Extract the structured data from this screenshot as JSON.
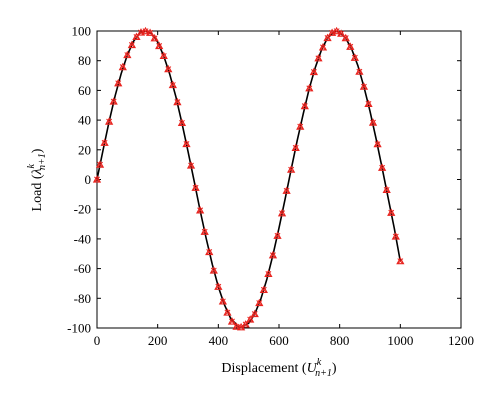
{
  "chart_data": {
    "type": "line",
    "title": "",
    "xlabel": {
      "base": "Displacement (",
      "var": "U",
      "sup": "k",
      "sub": "n+1",
      "tail": ")"
    },
    "ylabel": {
      "base": "Load (",
      "var": "λ",
      "sup": "k",
      "sub": "n+1",
      "tail": ")"
    },
    "xlim": [
      0,
      1200
    ],
    "ylim": [
      -100,
      100
    ],
    "xticks": [
      0,
      200,
      400,
      600,
      800,
      1000,
      1200
    ],
    "yticks": [
      -100,
      -80,
      -60,
      -40,
      -20,
      0,
      20,
      40,
      60,
      80,
      100
    ],
    "grid": false,
    "legend": "none",
    "series": [
      {
        "style": "line",
        "color": "#000000",
        "x": [
          0,
          20,
          40,
          60,
          80,
          100,
          120,
          140,
          157,
          180,
          200,
          220,
          240,
          260,
          280,
          300,
          320,
          340,
          360,
          380,
          400,
          420,
          440,
          470,
          500,
          520,
          540,
          560,
          580,
          600,
          620,
          640,
          660,
          680,
          700,
          720,
          740,
          760,
          785,
          800,
          820,
          840,
          860,
          880,
          900,
          920,
          940,
          960,
          980,
          1000
        ],
        "y": [
          0,
          19.9,
          39.0,
          56.5,
          71.6,
          83.8,
          92.9,
          98.4,
          100,
          98.2,
          92.5,
          83.2,
          70.8,
          55.7,
          38.1,
          19.0,
          -0.9,
          -20.8,
          -39.7,
          -57.2,
          -72.2,
          -84.3,
          -93.3,
          -99.9,
          -96.8,
          -90.6,
          -80.6,
          -67.1,
          -51.0,
          -32.6,
          -13.2,
          6.6,
          26.2,
          44.4,
          61.4,
          75.6,
          87.3,
          95.3,
          100,
          99.0,
          95.2,
          87.6,
          76.6,
          62.5,
          46.0,
          27.4,
          7.9,
          -12.6,
          -32.9,
          -55
        ]
      },
      {
        "style": "markers",
        "color": "#e8231e",
        "x": [
          0,
          10,
          25,
          40,
          55,
          70,
          85,
          100,
          115,
          130,
          145,
          160,
          175,
          190,
          205,
          220,
          235,
          250,
          265,
          280,
          295,
          310,
          325,
          340,
          355,
          370,
          385,
          400,
          415,
          430,
          445,
          460,
          475,
          490,
          505,
          520,
          535,
          550,
          565,
          580,
          595,
          610,
          625,
          640,
          655,
          670,
          685,
          700,
          715,
          730,
          745,
          760,
          775,
          790,
          805,
          820,
          835,
          850,
          865,
          880,
          895,
          910,
          925,
          940,
          955,
          970,
          985,
          1000
        ],
        "y": [
          0,
          10.0,
          24.7,
          39.0,
          52.5,
          64.8,
          75.7,
          83.8,
          90.6,
          96.0,
          99.0,
          99.9,
          98.8,
          95.1,
          89.9,
          83.2,
          74.3,
          63.6,
          52.1,
          38.1,
          23.9,
          9.4,
          -5.6,
          -20.8,
          -35.2,
          -48.8,
          -61.3,
          -72.2,
          -82.1,
          -89.6,
          -95.6,
          -99.1,
          -99.5,
          -97.6,
          -94.3,
          -90.6,
          -83.2,
          -74.3,
          -63.6,
          -51.0,
          -37.9,
          -22.7,
          -7.6,
          6.6,
          21.3,
          35.6,
          49.4,
          61.4,
          72.4,
          81.6,
          89.0,
          95.3,
          98.8,
          99.9,
          98.2,
          95.2,
          89.4,
          82.0,
          72.6,
          62.5,
          50.9,
          38.3,
          23.8,
          7.9,
          -7.0,
          -22.4,
          -38.4,
          -55
        ]
      }
    ]
  }
}
